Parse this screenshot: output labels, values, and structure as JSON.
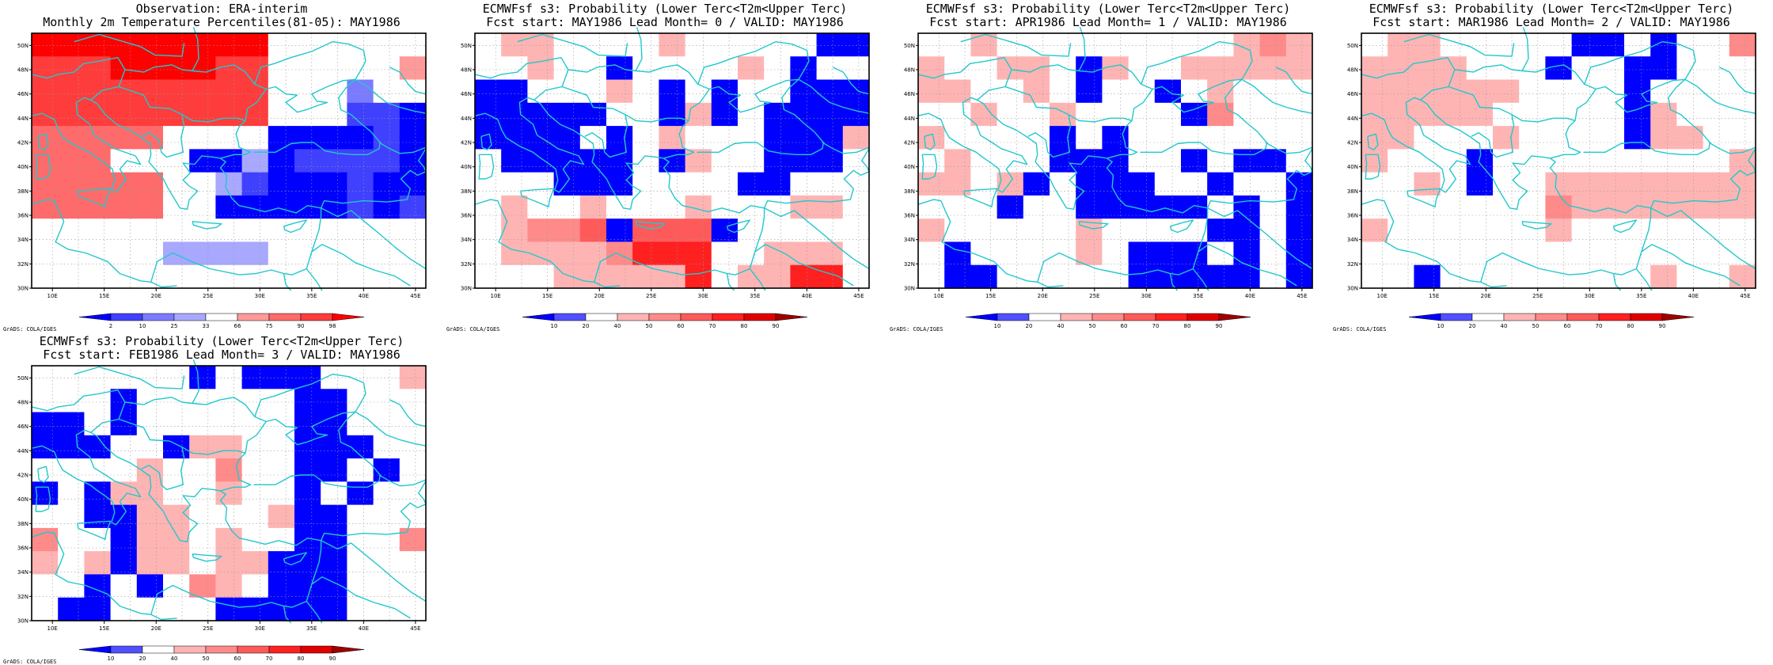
{
  "colors": {
    "coast": "#22c8cc",
    "frame": "#000000",
    "grid": "#9a9a9a",
    "obs_scale": [
      "#0000ff",
      "#4040ff",
      "#7b7bff",
      "#a8a8ff",
      "#ffffff",
      "#ff9a9a",
      "#ff6a6a",
      "#ff3c3c",
      "#ff0000"
    ],
    "prob_scale": [
      "#0000ff",
      "#5050ff",
      "#ffffff",
      "#ffb4b4",
      "#ff8a8a",
      "#ff5a5a",
      "#ff2020",
      "#e00000",
      "#a00000"
    ]
  },
  "map": {
    "lon_range": [
      8,
      46
    ],
    "lat_range": [
      30,
      51
    ],
    "x_ticks": [
      "10E",
      "15E",
      "20E",
      "25E",
      "30E",
      "35E",
      "40E",
      "45E"
    ],
    "y_ticks": [
      "30N",
      "32N",
      "34N",
      "36N",
      "38N",
      "40N",
      "42N",
      "44N",
      "46N",
      "48N",
      "50N"
    ],
    "grid_spacing_deg": [
      2.5,
      2.5
    ]
  },
  "credit": "GrADS: COLA/IGES",
  "panels": [
    {
      "title1": "Observation: ERA-interim",
      "title2": "Monthly 2m Temperature Percentiles(81-05): MAY1986",
      "colorbar_labels": [
        "2",
        "10",
        "25",
        "33",
        "66",
        "75",
        "90",
        "98"
      ],
      "scale": "obs",
      "grid": [
        "888888888444444",
        "777888877444445",
        "777777777444244",
        "777777777444110",
        "666664444000010",
        "666444003011110",
        "666664431000100",
        "666664400000101",
        "444444444444444",
        "444443333444444",
        "444444444444444"
      ]
    },
    {
      "title1": "ECMWFsf s3: Probability (Lower Terc<T2m<Upper Terc)",
      "title2": "Fcst start: MAY1986  Lead Month= 0 / VALID: MAY1986",
      "colorbar_labels": [
        "10",
        "20",
        "40",
        "50",
        "60",
        "70",
        "80",
        "90"
      ],
      "scale": "prob",
      "grid": [
        "233222232222200",
        "223220222232022",
        "002223202022000",
        "000002203020000",
        "000020232220003",
        "200000203220002",
        "222000222200222",
        "232232223222332",
        "234450555022222",
        "233334666223332",
        "222333336233662"
      ]
    },
    {
      "title1": "ECMWFsf s3: Probability (Lower Terc<T2m<Upper Terc)",
      "title2": "Fcst start: APR1986  Lead Month= 1 / VALID: MAY1986",
      "colorbar_labels": [
        "10",
        "20",
        "40",
        "50",
        "60",
        "70",
        "80",
        "90"
      ],
      "scale": "prob",
      "grid": [
        "223222222222343",
        "322332032233333",
        "332232022023222",
        "223223222204222",
        "322220202222222",
        "232220002202002",
        "332302000220220",
        "222022000002020",
        "322222322220020",
        "202222320002020",
        "200222220000020"
      ]
    },
    {
      "title1": "ECMWFsf s3: Probability (Lower Terc<T2m<Upper Terc)",
      "title2": "Fcst start: MAR1986  Lead Month= 2 / VALID: MAY1986",
      "colorbar_labels": [
        "10",
        "20",
        "40",
        "50",
        "60",
        "70",
        "80",
        "90"
      ],
      "scale": "prob",
      "grid": [
        "233222220020224",
        "333322202200222",
        "333333222202222",
        "333332222203222",
        "332223222203322",
        "322202222222223",
        "223202233333333",
        "222222243333333",
        "322222232222222",
        "222222222222222",
        "220222222223223"
      ]
    },
    {
      "title1": "ECMWFsf s3: Probability (Lower Terc<T2m<Upper Terc)",
      "title2": "Fcst start: FEB1986  Lead Month= 3 / VALID: MAY1986",
      "colorbar_labels": [
        "10",
        "20",
        "40",
        "50",
        "60",
        "70",
        "80",
        "90"
      ],
      "scale": "prob",
      "grid": [
        "222222020002223",
        "222022222200222",
        "002022222200222",
        "000220332200022",
        "222232242200202",
        "020332232202022",
        "220033222300222",
        "422033232200224",
        "323033233000222",
        "220202432000222",
        "200222200000222"
      ]
    }
  ]
}
